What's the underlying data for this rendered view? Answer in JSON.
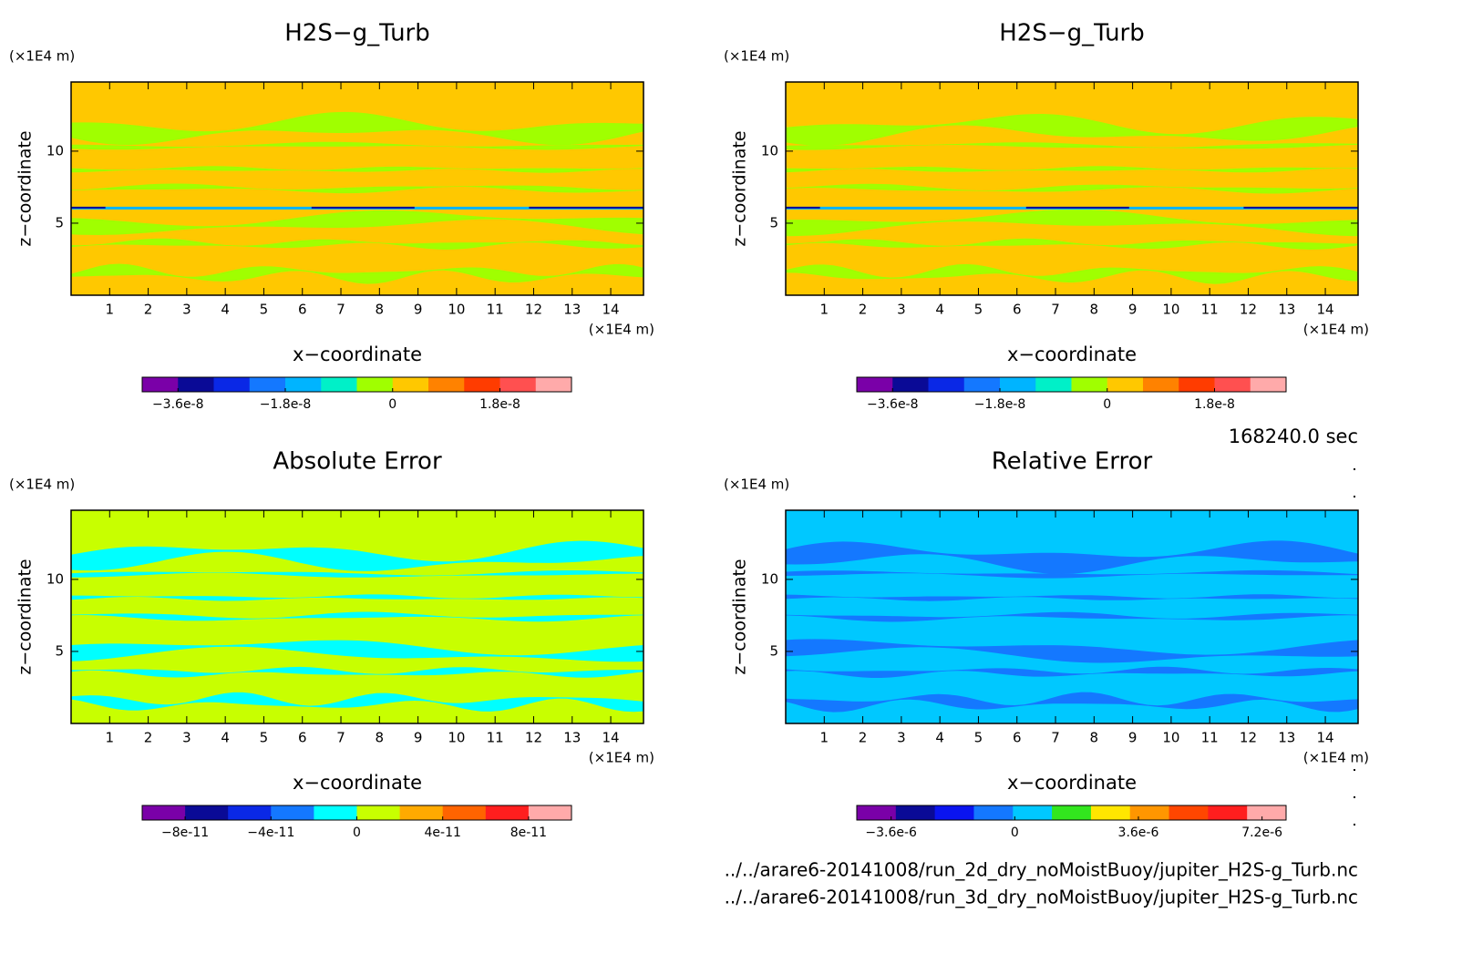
{
  "chart_data": [
    {
      "type": "contour",
      "title": "H2S−g_Turb",
      "y_unit": "(×1E4 m)",
      "x_unit": "(×1E4 m)",
      "xlabel": "x−coordinate",
      "ylabel": "z−coordinate",
      "xlim": [
        0,
        14.85
      ],
      "ylim": [
        0,
        14.8
      ],
      "xticks": [
        1,
        2,
        3,
        4,
        5,
        6,
        7,
        8,
        9,
        10,
        11,
        12,
        13,
        14
      ],
      "yticks": [
        5,
        10
      ],
      "colorbar": {
        "lim": [
          -4.2e-08,
          3e-08
        ],
        "colors": [
          "#7a00a8",
          "#0a0a96",
          "#0a28e6",
          "#1478ff",
          "#00b4ff",
          "#00f0c8",
          "#a0ff00",
          "#ffc800",
          "#ff8200",
          "#ff3c00",
          "#ff5050",
          "#ffaaaa"
        ],
        "ticks": [
          {
            "value": -3.6e-08,
            "label": "−3.6e-8"
          },
          {
            "value": -1.8e-08,
            "label": "−1.8e-8"
          },
          0,
          {
            "value": 1.8e-08,
            "label": "1.8e-8"
          }
        ]
      }
    },
    {
      "type": "contour",
      "title": "H2S−g_Turb",
      "y_unit": "(×1E4 m)",
      "x_unit": "(×1E4 m)",
      "xlabel": "x−coordinate",
      "ylabel": "z−coordinate",
      "xlim": [
        0,
        14.85
      ],
      "ylim": [
        0,
        14.8
      ],
      "xticks": [
        1,
        2,
        3,
        4,
        5,
        6,
        7,
        8,
        9,
        10,
        11,
        12,
        13,
        14
      ],
      "yticks": [
        5,
        10
      ],
      "colorbar": {
        "lim": [
          -4.2e-08,
          3e-08
        ],
        "colors": [
          "#7a00a8",
          "#0a0a96",
          "#0a28e6",
          "#1478ff",
          "#00b4ff",
          "#00f0c8",
          "#a0ff00",
          "#ffc800",
          "#ff8200",
          "#ff3c00",
          "#ff5050",
          "#ffaaaa"
        ],
        "ticks": [
          {
            "value": -3.6e-08,
            "label": "−3.6e-8"
          },
          {
            "value": -1.8e-08,
            "label": "−1.8e-8"
          },
          0,
          {
            "value": 1.8e-08,
            "label": "1.8e-8"
          }
        ]
      }
    },
    {
      "type": "contour",
      "title": "Absolute Error",
      "y_unit": "(×1E4 m)",
      "x_unit": "(×1E4 m)",
      "xlabel": "x−coordinate",
      "ylabel": "z−coordinate",
      "xlim": [
        0,
        14.85
      ],
      "ylim": [
        0,
        14.8
      ],
      "xticks": [
        1,
        2,
        3,
        4,
        5,
        6,
        7,
        8,
        9,
        10,
        11,
        12,
        13,
        14
      ],
      "yticks": [
        5,
        10
      ],
      "colorbar": {
        "lim": [
          -1e-10,
          1e-10
        ],
        "colors": [
          "#7a00a8",
          "#0a0a96",
          "#0a28e6",
          "#1478ff",
          "#00ffff",
          "#c8ff00",
          "#ffaa00",
          "#ff6400",
          "#ff1e1e",
          "#ffaaaa"
        ],
        "ticks": [
          {
            "value": -8e-11,
            "label": "−8e-11"
          },
          {
            "value": -4e-11,
            "label": "−4e-11"
          },
          0,
          {
            "value": 4e-11,
            "label": "4e-11"
          },
          {
            "value": 8e-11,
            "label": "8e-11"
          }
        ]
      }
    },
    {
      "type": "contour",
      "title": "Relative Error",
      "y_unit": "(×1E4 m)",
      "x_unit": "(×1E4 m)",
      "xlabel": "x−coordinate",
      "ylabel": "z−coordinate",
      "xlim": [
        0,
        14.85
      ],
      "ylim": [
        0,
        14.8
      ],
      "xticks": [
        1,
        2,
        3,
        4,
        5,
        6,
        7,
        8,
        9,
        10,
        11,
        12,
        13,
        14
      ],
      "yticks": [
        5,
        10
      ],
      "colorbar": {
        "lim": [
          -4.6e-06,
          7.9e-06
        ],
        "colors": [
          "#7a00a8",
          "#0a0a96",
          "#0a14f0",
          "#1478ff",
          "#00c8ff",
          "#32e61e",
          "#ffe600",
          "#ff9600",
          "#ff4600",
          "#ff1e1e",
          "#ffaaaa"
        ],
        "ticks": [
          {
            "value": -3.6e-06,
            "label": "−3.6e-6"
          },
          0,
          {
            "value": 3.6e-06,
            "label": "3.6e-6"
          },
          {
            "value": 7.2e-06,
            "label": "7.2e-6"
          }
        ]
      }
    }
  ],
  "time_label": "168240.0 sec",
  "files": [
    "../../arare6-20141008/run_2d_dry_noMoistBuoy/jupiter_H2S-g_Turb.nc",
    "../../arare6-20141008/run_3d_dry_noMoistBuoy/jupiter_H2S-g_Turb.nc"
  ]
}
